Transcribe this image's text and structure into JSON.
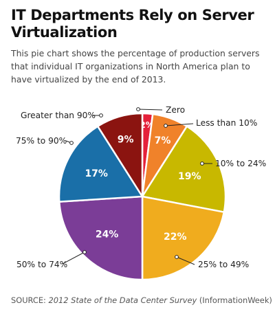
{
  "header": {
    "title": "IT Departments Rely on Server Virtualization",
    "subtitle": "This pie chart shows the percentage of production servers that individual IT organizations in North America plan to have virtualized by the end of 2013."
  },
  "footer": {
    "source_prefix": "SOURCE: ",
    "source_title": "2012 State of the Data Center Survey",
    "source_suffix": " (InformationWeek)"
  },
  "chart_data": {
    "type": "pie",
    "title": "IT Departments Rely on Server Virtualization",
    "start_angle_deg": 0,
    "direction": "clockwise",
    "slices": [
      {
        "label": "Zero",
        "value": 2,
        "value_label": "2%",
        "color": "#e5213a"
      },
      {
        "label": "Less than 10%",
        "value": 7,
        "value_label": "7%",
        "color": "#f0822a"
      },
      {
        "label": "10% to 24%",
        "value": 19,
        "value_label": "19%",
        "color": "#c8b800"
      },
      {
        "label": "25% to 49%",
        "value": 22,
        "value_label": "22%",
        "color": "#f0ac1e"
      },
      {
        "label": "50% to 74%",
        "value": 24,
        "value_label": "24%",
        "color": "#7b3d97"
      },
      {
        "label": "75% to 90%",
        "value": 17,
        "value_label": "17%",
        "color": "#1a6fa8"
      },
      {
        "label": "Greater than 90%",
        "value": 9,
        "value_label": "9%",
        "color": "#8b1410"
      }
    ]
  }
}
